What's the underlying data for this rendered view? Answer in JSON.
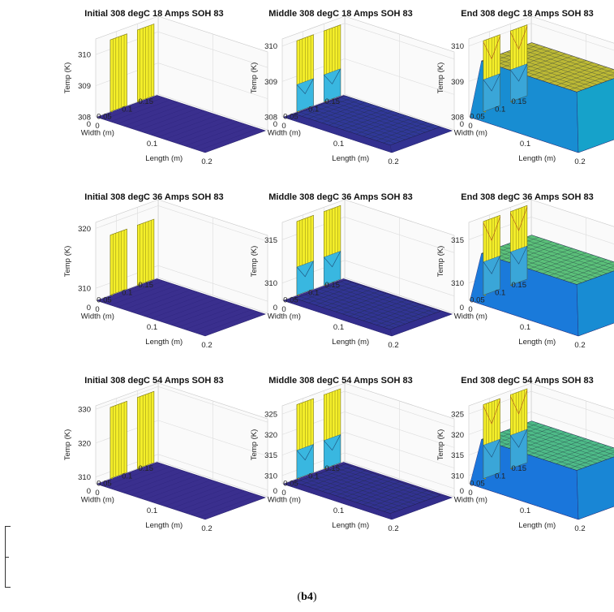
{
  "figure_label_left": "(",
  "figure_label_main": "b4",
  "figure_label_right": ")",
  "chart_data": [
    {
      "type": "surface3d",
      "title": "Initial 308 degC 18 Amps SOH 83",
      "xlabel": "Length (m)",
      "ylabel": "Width (m)",
      "zlabel": "Temp (K)",
      "xlim": [
        0,
        0.2
      ],
      "ylim": [
        0,
        0.15
      ],
      "zlim": [
        308,
        310.5
      ],
      "xticks": [
        "0",
        "0.1",
        "0.2"
      ],
      "yticks": [
        "0",
        "0.05",
        "0.1",
        "0.15"
      ],
      "zticks": [
        "308",
        "309",
        "310"
      ],
      "base_temp": 308,
      "tab_peak_temp": 310.3,
      "body_peak_temp": 308,
      "stage": "initial"
    },
    {
      "type": "surface3d",
      "title": "Middle 308 degC 18 Amps SOH 83",
      "xlabel": "Length (m)",
      "ylabel": "Width (m)",
      "zlabel": "Temp (K)",
      "xlim": [
        0,
        0.2
      ],
      "ylim": [
        0,
        0.15
      ],
      "zlim": [
        308,
        310.2
      ],
      "xticks": [
        "0",
        "0.1",
        "0.2"
      ],
      "yticks": [
        "0",
        "0.05",
        "0.1",
        "0.15"
      ],
      "zticks": [
        "308",
        "309",
        "310"
      ],
      "base_temp": 308,
      "tab_peak_temp": 310.0,
      "body_peak_temp": 308.1,
      "stage": "middle"
    },
    {
      "type": "surface3d",
      "title": "End 308 degC 18 Amps SOH 83",
      "xlabel": "Length (m)",
      "ylabel": "Width (m)",
      "zlabel": "Temp (K)",
      "xlim": [
        0,
        0.2
      ],
      "ylim": [
        0,
        0.15
      ],
      "zlim": [
        308,
        310.2
      ],
      "xticks": [
        "0",
        "0.1",
        "0.2"
      ],
      "yticks": [
        "0",
        "0.05",
        "0.1",
        "0.15"
      ],
      "zticks": [
        "308",
        "309",
        "310"
      ],
      "base_temp": 308,
      "tab_peak_temp": 310.0,
      "body_peak_temp": 309.6,
      "stage": "end"
    },
    {
      "type": "surface3d",
      "title": "Initial 308 degC 36 Amps SOH 83",
      "xlabel": "Length (m)",
      "ylabel": "Width (m)",
      "zlabel": "Temp (K)",
      "xlim": [
        0,
        0.2
      ],
      "ylim": [
        0,
        0.15
      ],
      "zlim": [
        308,
        321
      ],
      "xticks": [
        "0",
        "0.1",
        "0.2"
      ],
      "yticks": [
        "0",
        "0.05",
        "0.1",
        "0.15"
      ],
      "zticks": [
        "310",
        "320"
      ],
      "base_temp": 308,
      "tab_peak_temp": 318,
      "body_peak_temp": 308,
      "stage": "initial"
    },
    {
      "type": "surface3d",
      "title": "Middle 308 degC 36 Amps SOH 83",
      "xlabel": "Length (m)",
      "ylabel": "Width (m)",
      "zlabel": "Temp (K)",
      "xlim": [
        0,
        0.2
      ],
      "ylim": [
        0,
        0.15
      ],
      "zlim": [
        308,
        317
      ],
      "xticks": [
        "0",
        "0.1",
        "0.2"
      ],
      "yticks": [
        "0",
        "0.05",
        "0.1",
        "0.15"
      ],
      "zticks": [
        "310",
        "315"
      ],
      "base_temp": 308,
      "tab_peak_temp": 316.5,
      "body_peak_temp": 308.3,
      "stage": "middle"
    },
    {
      "type": "surface3d",
      "title": "End 308 degC 36 Amps SOH 83",
      "xlabel": "Length (m)",
      "ylabel": "Width (m)",
      "zlabel": "Temp (K)",
      "xlim": [
        0,
        0.2
      ],
      "ylim": [
        0,
        0.15
      ],
      "zlim": [
        308,
        317
      ],
      "xticks": [
        "0",
        "0.1",
        "0.2"
      ],
      "yticks": [
        "0",
        "0.05",
        "0.1",
        "0.15"
      ],
      "zticks": [
        "310",
        "315"
      ],
      "base_temp": 308,
      "tab_peak_temp": 316.5,
      "body_peak_temp": 313.5,
      "stage": "end"
    },
    {
      "type": "surface3d",
      "title": "Initial 308 degC 54 Amps SOH 83",
      "xlabel": "Length (m)",
      "ylabel": "Width (m)",
      "zlabel": "Temp (K)",
      "xlim": [
        0,
        0.2
      ],
      "ylim": [
        0,
        0.15
      ],
      "zlim": [
        308,
        331
      ],
      "xticks": [
        "0",
        "0.1",
        "0.2"
      ],
      "yticks": [
        "0",
        "0.05",
        "0.1",
        "0.15"
      ],
      "zticks": [
        "310",
        "320",
        "330"
      ],
      "base_temp": 308,
      "tab_peak_temp": 329,
      "body_peak_temp": 308,
      "stage": "initial"
    },
    {
      "type": "surface3d",
      "title": "Middle 308 degC 54 Amps SOH 83",
      "xlabel": "Length (m)",
      "ylabel": "Width (m)",
      "zlabel": "Temp (K)",
      "xlim": [
        0,
        0.2
      ],
      "ylim": [
        0,
        0.15
      ],
      "zlim": [
        308,
        327
      ],
      "xticks": [
        "0",
        "0.1",
        "0.2"
      ],
      "yticks": [
        "0",
        "0.05",
        "0.1",
        "0.15"
      ],
      "zticks": [
        "310",
        "315",
        "320",
        "325"
      ],
      "base_temp": 308,
      "tab_peak_temp": 326,
      "body_peak_temp": 308.5,
      "stage": "middle"
    },
    {
      "type": "surface3d",
      "title": "End 308 degC 54 Amps SOH 83",
      "xlabel": "Length (m)",
      "ylabel": "Width (m)",
      "zlabel": "Temp (K)",
      "xlim": [
        0,
        0.2
      ],
      "ylim": [
        0,
        0.15
      ],
      "zlim": [
        308,
        327
      ],
      "xticks": [
        "0",
        "0.1",
        "0.2"
      ],
      "yticks": [
        "0",
        "0.05",
        "0.1",
        "0.15"
      ],
      "zticks": [
        "310",
        "315",
        "320",
        "325"
      ],
      "base_temp": 308,
      "tab_peak_temp": 326,
      "body_peak_temp": 319,
      "stage": "end"
    }
  ]
}
